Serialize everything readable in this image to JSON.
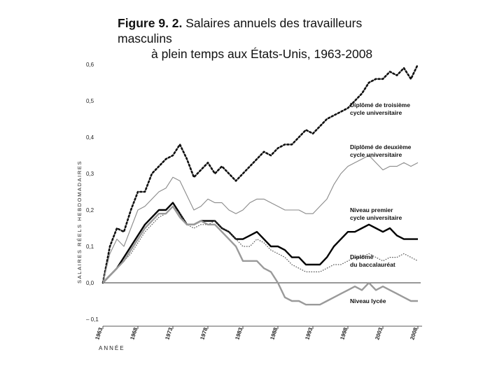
{
  "figure": {
    "title_bold": "Figure 9. 2.",
    "title_line1": " Salaires annuels des travailleurs masculins",
    "title_line2": "à plein temps aux États-Unis, 1963-2008"
  },
  "chart_data": {
    "type": "line",
    "title": "Figure 9. 2. Salaires annuels des travailleurs masculins à plein temps aux États-Unis, 1963-2008",
    "ylabel": "SALAIRES RÉELS HEBDOMADAIRES",
    "xlabel": "ANNÉE",
    "xlim": [
      1963,
      2008
    ],
    "ylim": [
      -0.1,
      0.6
    ],
    "y_ticks": [
      {
        "value": -0.1,
        "label": "– 0,1"
      },
      {
        "value": 0.0,
        "label": "0,0"
      },
      {
        "value": 0.1,
        "label": "0,1"
      },
      {
        "value": 0.2,
        "label": "0,2"
      },
      {
        "value": 0.3,
        "label": "0,3"
      },
      {
        "value": 0.4,
        "label": "0,4"
      },
      {
        "value": 0.5,
        "label": "0,5"
      },
      {
        "value": 0.6,
        "label": "0,6"
      }
    ],
    "x_ticks": [
      {
        "value": 1963,
        "label": "1963"
      },
      {
        "value": 1968,
        "label": "1968"
      },
      {
        "value": 1973,
        "label": "1973"
      },
      {
        "value": 1978,
        "label": "1978"
      },
      {
        "value": 1983,
        "label": "1983"
      },
      {
        "value": 1988,
        "label": "1988"
      },
      {
        "value": 1993,
        "label": "1993"
      },
      {
        "value": 1998,
        "label": "1998"
      },
      {
        "value": 2003,
        "label": "2003"
      },
      {
        "value": 2008,
        "label": "2008"
      }
    ],
    "x": [
      1963,
      1964,
      1965,
      1966,
      1967,
      1968,
      1969,
      1970,
      1971,
      1972,
      1973,
      1974,
      1975,
      1976,
      1977,
      1978,
      1979,
      1980,
      1981,
      1982,
      1983,
      1984,
      1985,
      1986,
      1987,
      1988,
      1989,
      1990,
      1991,
      1992,
      1993,
      1994,
      1995,
      1996,
      1997,
      1998,
      1999,
      2000,
      2001,
      2002,
      2003,
      2004,
      2005,
      2006,
      2007,
      2008
    ],
    "series": [
      {
        "name": "Diplômé de troisième cycle universitaire",
        "label_lines": [
          "Diplômé de troisième",
          "cycle universitaire"
        ],
        "style": "dotted-bold",
        "values": [
          0.0,
          0.1,
          0.15,
          0.14,
          0.2,
          0.25,
          0.25,
          0.3,
          0.32,
          0.34,
          0.35,
          0.38,
          0.34,
          0.29,
          0.31,
          0.33,
          0.3,
          0.32,
          0.3,
          0.28,
          0.3,
          0.32,
          0.34,
          0.36,
          0.35,
          0.37,
          0.38,
          0.38,
          0.4,
          0.42,
          0.41,
          0.43,
          0.45,
          0.46,
          0.47,
          0.48,
          0.5,
          0.52,
          0.55,
          0.56,
          0.56,
          0.58,
          0.57,
          0.59,
          0.56,
          0.6
        ]
      },
      {
        "name": "Diplômé de deuxième cycle universitaire",
        "label_lines": [
          "Diplômé de deuxième",
          "cycle universitaire"
        ],
        "style": "light-thin",
        "values": [
          0.0,
          0.08,
          0.12,
          0.1,
          0.15,
          0.2,
          0.21,
          0.23,
          0.25,
          0.26,
          0.29,
          0.28,
          0.24,
          0.2,
          0.21,
          0.23,
          0.22,
          0.22,
          0.2,
          0.19,
          0.2,
          0.22,
          0.23,
          0.23,
          0.22,
          0.21,
          0.2,
          0.2,
          0.2,
          0.19,
          0.19,
          0.21,
          0.23,
          0.27,
          0.3,
          0.32,
          0.33,
          0.34,
          0.35,
          0.33,
          0.31,
          0.32,
          0.32,
          0.33,
          0.32,
          0.33
        ]
      },
      {
        "name": "Niveau premier cycle universitaire",
        "label_lines": [
          "Niveau premier",
          "cycle universitaire"
        ],
        "style": "solid-bold",
        "values": [
          0.0,
          0.02,
          0.04,
          0.07,
          0.1,
          0.13,
          0.16,
          0.18,
          0.2,
          0.2,
          0.22,
          0.19,
          0.16,
          0.16,
          0.17,
          0.17,
          0.17,
          0.15,
          0.14,
          0.12,
          0.12,
          0.13,
          0.14,
          0.12,
          0.1,
          0.1,
          0.09,
          0.07,
          0.07,
          0.05,
          0.05,
          0.05,
          0.07,
          0.1,
          0.12,
          0.14,
          0.14,
          0.15,
          0.16,
          0.15,
          0.14,
          0.15,
          0.13,
          0.12,
          0.12,
          0.12
        ]
      },
      {
        "name": "Diplômé du baccalauréat",
        "label_lines": [
          "Diplômé",
          "du baccalauréat"
        ],
        "style": "dotted-thin",
        "values": [
          0.0,
          0.02,
          0.04,
          0.06,
          0.08,
          0.11,
          0.14,
          0.16,
          0.18,
          0.19,
          0.21,
          0.19,
          0.16,
          0.15,
          0.16,
          0.16,
          0.17,
          0.15,
          0.14,
          0.12,
          0.1,
          0.1,
          0.12,
          0.11,
          0.09,
          0.08,
          0.07,
          0.05,
          0.04,
          0.03,
          0.03,
          0.03,
          0.04,
          0.05,
          0.05,
          0.06,
          0.07,
          0.07,
          0.08,
          0.07,
          0.06,
          0.07,
          0.07,
          0.08,
          0.07,
          0.06
        ]
      },
      {
        "name": "Niveau lycée",
        "label_lines": [
          "Niveau lycée"
        ],
        "style": "gray-bold",
        "values": [
          0.0,
          0.02,
          0.04,
          0.06,
          0.09,
          0.12,
          0.15,
          0.17,
          0.19,
          0.19,
          0.21,
          0.18,
          0.16,
          0.16,
          0.17,
          0.16,
          0.16,
          0.14,
          0.12,
          0.1,
          0.06,
          0.06,
          0.06,
          0.04,
          0.03,
          0.0,
          -0.04,
          -0.05,
          -0.05,
          -0.06,
          -0.06,
          -0.06,
          -0.05,
          -0.04,
          -0.03,
          -0.02,
          -0.01,
          -0.02,
          0.0,
          -0.02,
          -0.01,
          -0.02,
          -0.03,
          -0.04,
          -0.05,
          -0.05
        ]
      }
    ]
  }
}
